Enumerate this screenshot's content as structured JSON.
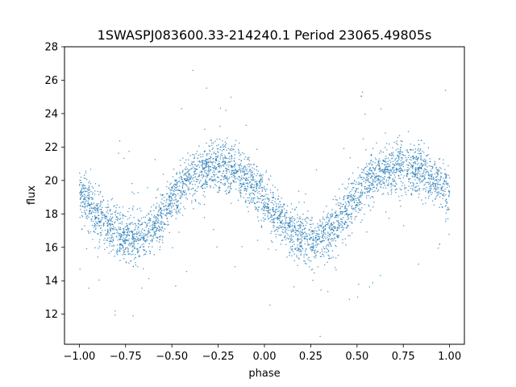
{
  "chart_data": {
    "type": "scatter",
    "title": "1SWASPJ083600.33-214240.1 Period 23065.49805s",
    "xlabel": "phase",
    "ylabel": "flux",
    "xlim": [
      -1.08,
      1.08
    ],
    "ylim": [
      10.2,
      28
    ],
    "xticks": [
      -1.0,
      -0.75,
      -0.5,
      -0.25,
      0.0,
      0.25,
      0.5,
      0.75,
      1.0
    ],
    "xtick_labels": [
      "−1.00",
      "−0.75",
      "−0.50",
      "−0.25",
      "0.00",
      "0.25",
      "0.50",
      "0.75",
      "1.00"
    ],
    "yticks": [
      12,
      14,
      16,
      18,
      20,
      22,
      24,
      26,
      28
    ],
    "ytick_labels": [
      "12",
      "14",
      "16",
      "18",
      "20",
      "22",
      "24",
      "26",
      "28"
    ],
    "grid": false,
    "point_color": "#1f77b4",
    "series": [
      {
        "x": [
          -1.0,
          -0.95,
          -0.9,
          -0.85,
          -0.8,
          -0.75,
          -0.7,
          -0.65,
          -0.6,
          -0.55,
          -0.5,
          -0.45,
          -0.4,
          -0.35,
          -0.3,
          -0.25,
          -0.2,
          -0.15,
          -0.1,
          -0.05,
          0.0,
          0.05,
          0.1,
          0.15,
          0.2,
          0.25,
          0.3,
          0.35,
          0.4,
          0.45,
          0.5,
          0.55,
          0.6,
          0.65,
          0.7,
          0.75,
          0.8,
          0.85,
          0.9,
          0.95,
          1.0
        ],
        "y": [
          19.2,
          18.6,
          17.9,
          17.3,
          16.9,
          16.6,
          16.5,
          16.7,
          17.2,
          17.9,
          18.7,
          19.5,
          20.1,
          20.5,
          20.7,
          20.8,
          20.7,
          20.5,
          20.1,
          19.6,
          18.9,
          18.1,
          17.4,
          16.9,
          16.6,
          16.5,
          16.6,
          16.9,
          17.5,
          18.3,
          19.1,
          19.8,
          20.3,
          20.6,
          20.7,
          20.8,
          20.7,
          20.5,
          20.2,
          19.7,
          19.2
        ]
      }
    ]
  }
}
